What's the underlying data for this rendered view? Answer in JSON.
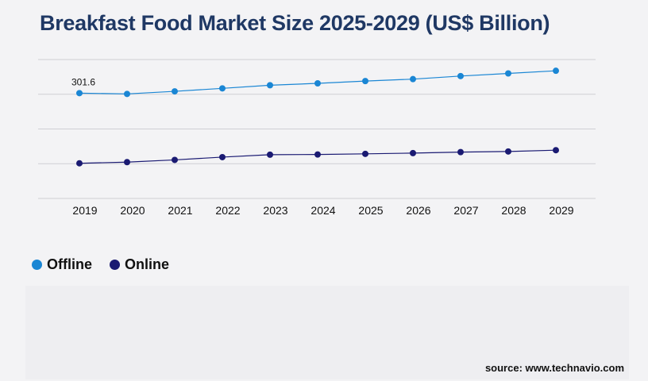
{
  "title": "Breakfast Food Market Size 2025-2029 (US$ Billion)",
  "source": "source: www.technavio.com",
  "chart_data": {
    "type": "line",
    "title": "Breakfast Food Market Size 2025-2029 (US$ Billion)",
    "x": [
      "2019",
      "2020",
      "2021",
      "2022",
      "2023",
      "2024",
      "2025",
      "2026",
      "2027",
      "2028",
      "2029"
    ],
    "series": [
      {
        "name": "Offline",
        "color": "#1a86d4",
        "values": [
          301.6,
          300.5,
          304.2,
          308.5,
          313.0,
          315.7,
          319.0,
          321.8,
          326.2,
          330.0,
          333.8
        ]
      },
      {
        "name": "Online",
        "color": "#1a1a72",
        "values": [
          200.6,
          202.3,
          205.5,
          209.5,
          213.0,
          213.3,
          214.2,
          215.3,
          216.7,
          217.6,
          219.5
        ]
      }
    ],
    "data_labels": [
      {
        "series": "Offline",
        "index": 0,
        "text": "301.6"
      }
    ],
    "ylim": [
      150,
      350
    ],
    "grid": true,
    "legend": "bottom-left",
    "xlabel": "",
    "ylabel": ""
  }
}
